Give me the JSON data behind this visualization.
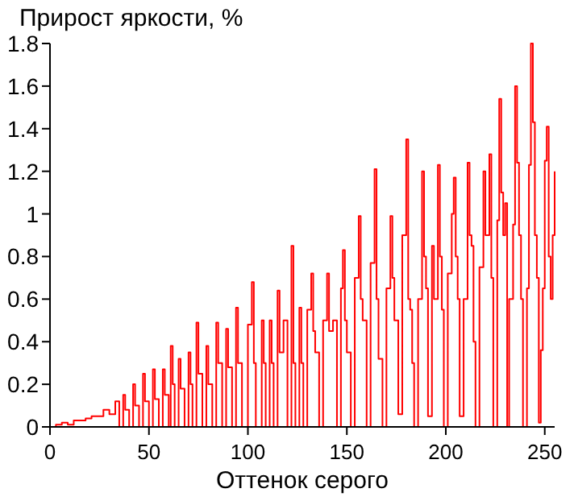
{
  "chart_data": {
    "type": "step",
    "xlabel": "Оттенок серого",
    "ylabel": "Прирост яркости, %",
    "xlim": [
      0,
      255
    ],
    "xticks": [
      0,
      50,
      100,
      150,
      200,
      250
    ],
    "ylim": [
      0,
      1.8
    ],
    "yticks": [
      0,
      0.2,
      0.4,
      0.6,
      0.8,
      1,
      1.2,
      1.4,
      1.6,
      1.8
    ],
    "grid": false,
    "series": [
      {
        "color": "#ff0000",
        "x": [
          0,
          3,
          6,
          9,
          12,
          15,
          18,
          21,
          24,
          27,
          30,
          33,
          35,
          37,
          38,
          40,
          42,
          43,
          45,
          47,
          48,
          50,
          52,
          53,
          55,
          57,
          58,
          60,
          61,
          62,
          63,
          65,
          66,
          68,
          70,
          71,
          72,
          74,
          75,
          77,
          79,
          80,
          82,
          84,
          85,
          87,
          89,
          90,
          92,
          94,
          95,
          97,
          100,
          102,
          103,
          104,
          107,
          108,
          109,
          111,
          112,
          113,
          115,
          116,
          118,
          120,
          122,
          123,
          124,
          126,
          127,
          128,
          130,
          132,
          133,
          134,
          136,
          138,
          140,
          141,
          143,
          145,
          147,
          148,
          149,
          150,
          152,
          154,
          156,
          157,
          158,
          160,
          162,
          164,
          165,
          166,
          168,
          170,
          172,
          173,
          174,
          176,
          178,
          180,
          181,
          182,
          183,
          184,
          186,
          188,
          189,
          190,
          191,
          193,
          194,
          196,
          197,
          198,
          199,
          201,
          203,
          204,
          205,
          206,
          207,
          209,
          211,
          212,
          213,
          214,
          215,
          217,
          219,
          220,
          222,
          223,
          224,
          226,
          227,
          228,
          229,
          230,
          231,
          232,
          234,
          235,
          236,
          237,
          238,
          239,
          241,
          242,
          243,
          244,
          245,
          246,
          247,
          248,
          249,
          250,
          251,
          252,
          253,
          254,
          255
        ],
        "values": [
          0,
          0.01,
          0.02,
          0.01,
          0.03,
          0.03,
          0.04,
          0.05,
          0.05,
          0.08,
          0.06,
          0.12,
          0,
          0.15,
          0.08,
          0,
          0.2,
          0.1,
          0,
          0.25,
          0.12,
          0,
          0.27,
          0.13,
          0,
          0.27,
          0.15,
          0,
          0.38,
          0.2,
          0,
          0.32,
          0.18,
          0,
          0.35,
          0.2,
          0,
          0.49,
          0.25,
          0,
          0.38,
          0.2,
          0,
          0.49,
          0.3,
          0,
          0.46,
          0.28,
          0,
          0.56,
          0.3,
          0,
          0.48,
          0.68,
          0.3,
          0,
          0.5,
          0.3,
          0,
          0.5,
          0.3,
          0,
          0.64,
          0.35,
          0.5,
          0,
          0.85,
          0.3,
          0,
          0.56,
          0.3,
          0,
          0.55,
          0.72,
          0.45,
          0.35,
          0,
          0.5,
          0.72,
          0.45,
          0.5,
          0,
          0.65,
          0.83,
          0.5,
          0.35,
          0,
          0.7,
          0.99,
          0.6,
          0.5,
          0,
          0.77,
          1.21,
          0.6,
          0.32,
          0,
          0.65,
          0.99,
          0.7,
          0.5,
          0.06,
          0.9,
          1.35,
          0.6,
          0.55,
          0.3,
          0,
          0.6,
          1.2,
          0.8,
          0.65,
          0.05,
          0.85,
          0.6,
          1.23,
          0.8,
          0.55,
          0,
          0.72,
          1.0,
          1.17,
          0.8,
          0.6,
          0.05,
          0.6,
          1.24,
          0.9,
          0.85,
          0.4,
          0,
          0.75,
          1.2,
          0.9,
          1.28,
          0.7,
          0,
          0.97,
          1.54,
          1.1,
          0.9,
          1.05,
          0,
          0.6,
          0.95,
          1.6,
          1.24,
          0.9,
          0.6,
          0,
          0.65,
          1.23,
          1.8,
          1.43,
          0.9,
          0.7,
          0.02,
          0.36,
          0.65,
          1.25,
          1.41,
          0.8,
          0.6,
          0.9,
          1.2
        ]
      }
    ]
  }
}
